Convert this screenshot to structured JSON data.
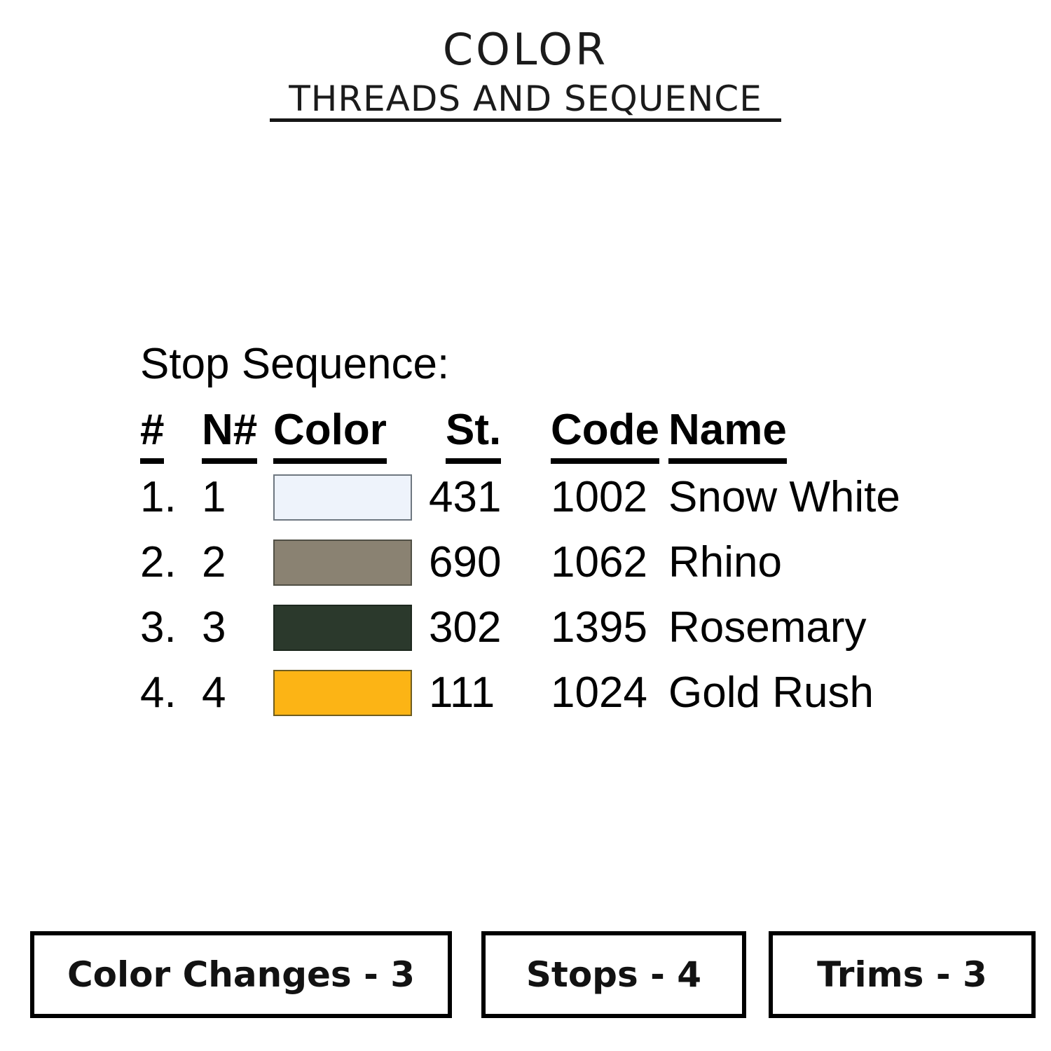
{
  "header": {
    "title": "COLOR",
    "subtitle": "THREADS AND SEQUENCE"
  },
  "sequence": {
    "heading": "Stop Sequence:",
    "columns": {
      "num": "#",
      "needle": "N#",
      "color": "Color",
      "stitches": "St.",
      "code": "Code",
      "name": "Name"
    },
    "rows": [
      {
        "num": "1.",
        "needle": "1",
        "swatch": "#eef3fb",
        "swatch_border": "#6e7780",
        "stitches": "431",
        "code": "1002",
        "name": "Snow White"
      },
      {
        "num": "2.",
        "needle": "2",
        "swatch": "#8a8272",
        "swatch_border": "#504f45",
        "stitches": "690",
        "code": "1062",
        "name": "Rhino"
      },
      {
        "num": "3.",
        "needle": "3",
        "swatch": "#2b392c",
        "swatch_border": "#1d281e",
        "stitches": "302",
        "code": "1395",
        "name": "Rosemary"
      },
      {
        "num": "4.",
        "needle": "4",
        "swatch": "#fcb415",
        "swatch_border": "#6f5d20",
        "stitches": "111",
        "code": "1024",
        "name": "Gold Rush"
      }
    ]
  },
  "summary": {
    "color_changes": "Color Changes - 3",
    "stops": "Stops - 4",
    "trims": "Trims - 3"
  }
}
